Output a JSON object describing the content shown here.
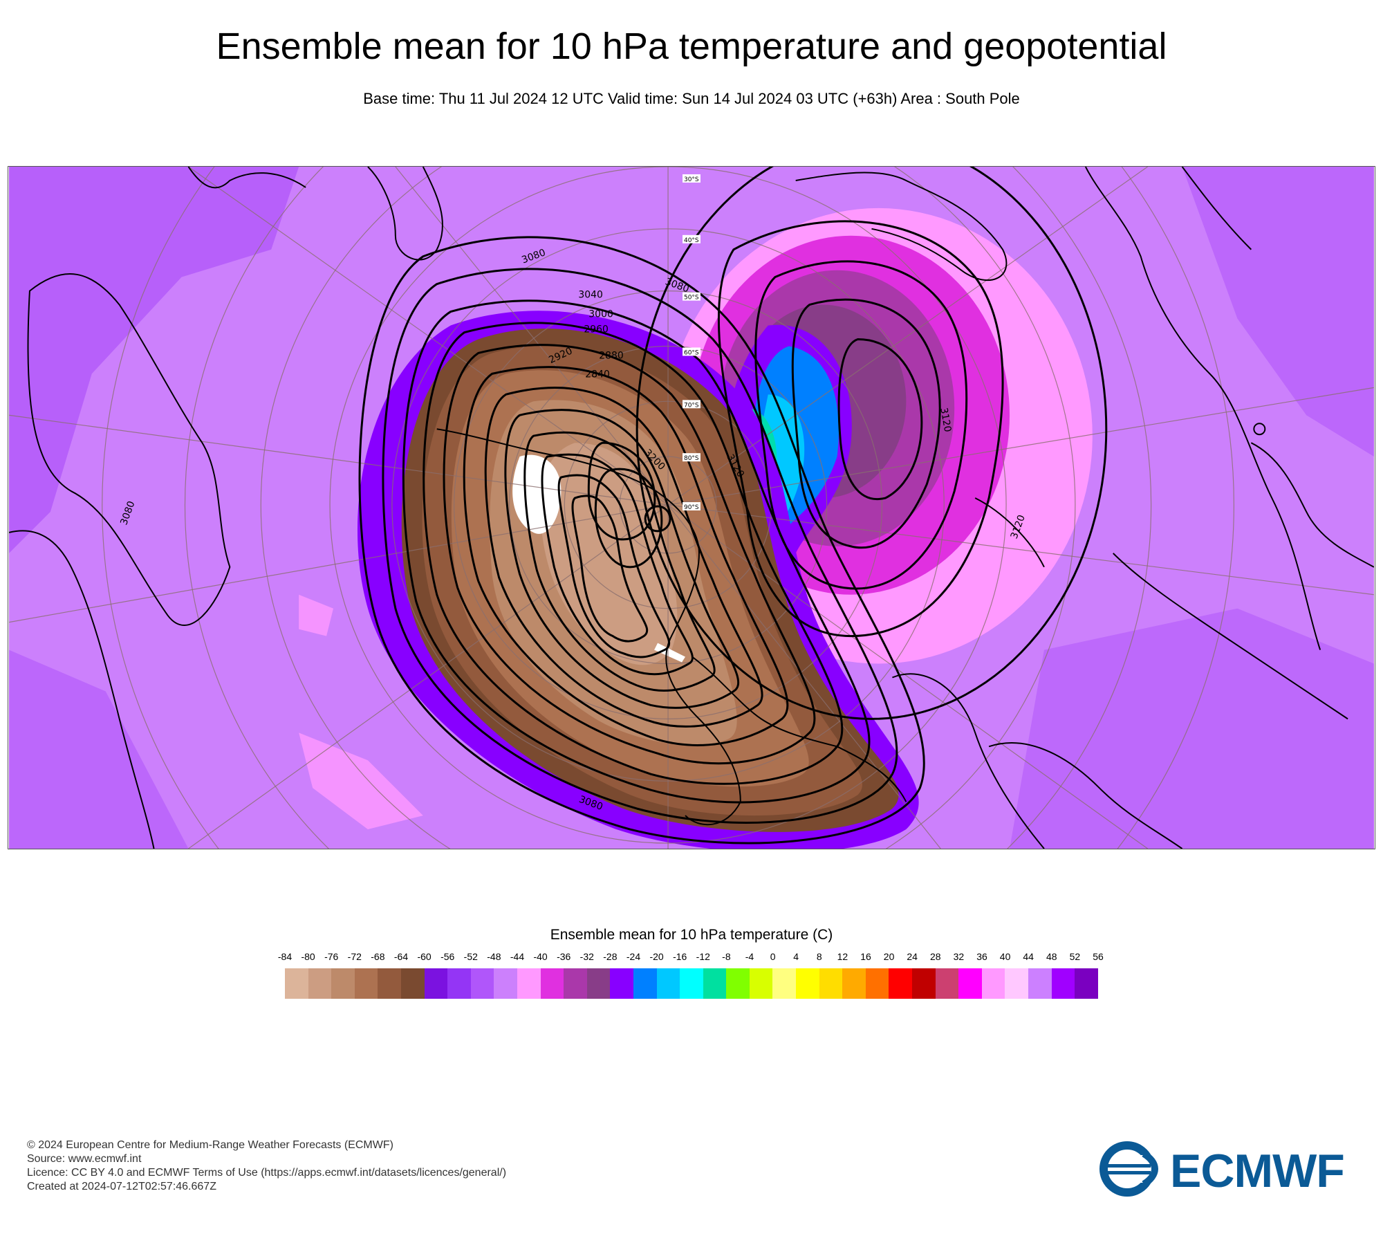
{
  "title": "Ensemble mean for 10 hPa temperature and geopotential",
  "subtitle": "Base time: Thu 11 Jul 2024 12 UTC Valid time: Sun 14 Jul 2024 03 UTC (+63h) Area : South Pole",
  "map": {
    "latitude_labels": [
      "30°S",
      "40°S",
      "50°S",
      "60°S",
      "70°S",
      "80°S",
      "90°S"
    ],
    "contour_labels": [
      "3080",
      "3040",
      "3000",
      "2960",
      "2920",
      "2880",
      "2840",
      "3080",
      "3120",
      "3120",
      "3200",
      "3080",
      "3120",
      "3080"
    ]
  },
  "legend": {
    "title": "Ensemble mean for 10 hPa temperature (C)",
    "ticks": [
      "-84",
      "-80",
      "-76",
      "-72",
      "-68",
      "-64",
      "-60",
      "-56",
      "-52",
      "-48",
      "-44",
      "-40",
      "-36",
      "-32",
      "-28",
      "-24",
      "-20",
      "-16",
      "-12",
      "-8",
      "-4",
      "0",
      "4",
      "8",
      "12",
      "16",
      "20",
      "24",
      "28",
      "32",
      "36",
      "40",
      "44",
      "48",
      "52",
      "56"
    ],
    "colors": [
      "#dcb49a",
      "#cc9d82",
      "#bd8a6a",
      "#ad7251",
      "#935a3d",
      "#7a4a30",
      "#7b12e0",
      "#9435f5",
      "#b056fa",
      "#cc80fc",
      "#ff99ff",
      "#e030e0",
      "#aa38aa",
      "#883d88",
      "#8800ff",
      "#0080ff",
      "#00c8ff",
      "#00ffff",
      "#00e0a0",
      "#80ff00",
      "#d8ff00",
      "#ffff80",
      "#ffff00",
      "#ffdd00",
      "#ffaa00",
      "#ff7000",
      "#ff0000",
      "#c00000",
      "#cc4070",
      "#ff00ff",
      "#ff99ff",
      "#ffc8ff",
      "#cc80ff",
      "#a000ff",
      "#7a00c0"
    ]
  },
  "footer": {
    "line1": "© 2024 European Centre for Medium-Range Weather Forecasts (ECMWF)",
    "line2": "Source: www.ecmwf.int",
    "line3": "Licence: CC BY 4.0 and ECMWF Terms of Use (https://apps.ecmwf.int/datasets/licences/general/)",
    "line4": "Created at 2024-07-12T02:57:46.667Z"
  },
  "logo": {
    "text": "ECMWF",
    "color": "#0b5a96"
  }
}
